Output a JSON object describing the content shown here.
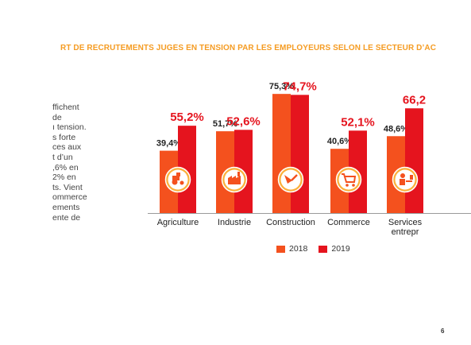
{
  "title": "RT DE RECRUTEMENTS JUGÉS EN TENSION PAR LES EMPLOYEURS SELON LE SECTEUR D’AC",
  "side_text": [
    "ffichent",
    "de",
    "ı tension.",
    "s forte",
    "ces aux",
    "t d’un",
    ",6% en",
    "2% en",
    "ts. Vient",
    "ommerce",
    "ements",
    "ente de"
  ],
  "legend": [
    {
      "label": "2018",
      "color": "#f4511e"
    },
    {
      "label": "2019",
      "color": "#e5141e"
    }
  ],
  "page_number": "6",
  "chart_data": {
    "type": "bar",
    "categories": [
      "Agriculture",
      "Industrie",
      "Construction",
      "Commerce",
      "Services entrepr"
    ],
    "category_lines": [
      [
        "Agriculture"
      ],
      [
        "Industrie"
      ],
      [
        "Construction"
      ],
      [
        "Commerce"
      ],
      [
        "Services",
        "entrepr"
      ]
    ],
    "icons": [
      "tractor-icon",
      "factory-icon",
      "trowel-icon",
      "shopping-cart-icon",
      "worker-desk-icon"
    ],
    "series": [
      {
        "name": "2018",
        "values": [
          39.4,
          51.7,
          75.3,
          40.6,
          48.6
        ],
        "labels": [
          "39,4%",
          "51,7%",
          "75,3%",
          "40,6%",
          "48,6%"
        ]
      },
      {
        "name": "2019",
        "values": [
          55.2,
          52.6,
          74.7,
          52.1,
          66.2
        ],
        "labels": [
          "55,2%",
          "52,6%",
          "74,7%",
          "52,1%",
          "66,2"
        ]
      }
    ],
    "ylim": [
      0,
      100
    ],
    "xlabel": "",
    "ylabel": "",
    "grid": false,
    "legend_position": "bottom"
  }
}
